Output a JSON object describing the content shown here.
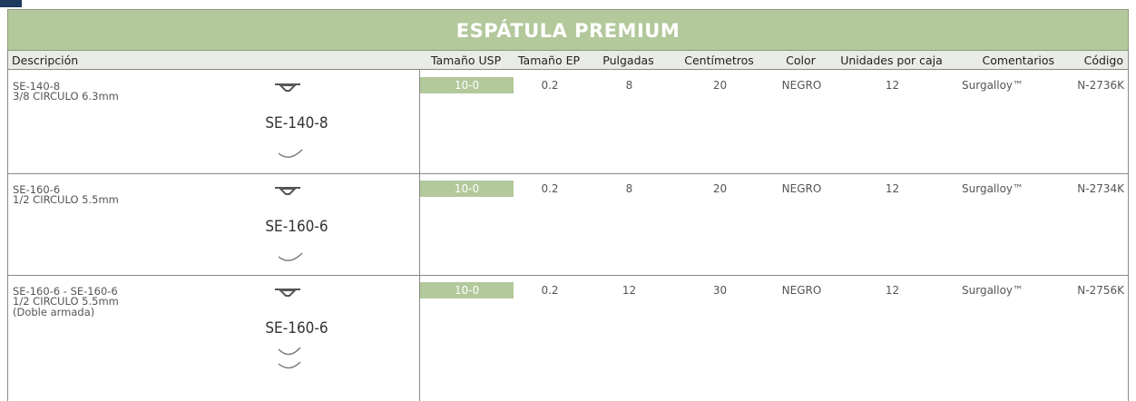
{
  "title": "ESPÁTULA PREMIUM",
  "columns": [
    "Descripción",
    "Tamaño USP",
    "Tamaño EP",
    "Pulgadas",
    "Centímetros",
    "Color",
    "Unidades por caja",
    "Comentarios",
    "Código"
  ],
  "rows": [
    {
      "description": [
        "SE-140-8",
        "3/8 CIRCULO 6.3mm"
      ],
      "image_label": "SE-140-8",
      "cells": [
        "10-0",
        "0.2",
        "8",
        "20",
        "NEGRO",
        "12",
        "Surgalloy™",
        "N-2736K"
      ]
    },
    {
      "description": [
        "SE-160-6",
        "1/2 CIRCULO 5.5mm"
      ],
      "image_label": "SE-160-6",
      "cells": [
        "10-0",
        "0.2",
        "8",
        "20",
        "NEGRO",
        "12",
        "Surgalloy™",
        "N-2734K"
      ]
    },
    {
      "description": [
        "SE-160-6 - SE-160-6",
        "1/2 CIRCULO 5.5mm",
        "(Doble armada)"
      ],
      "image_label": "SE-160-6",
      "cells": [
        "10-0",
        "0.2",
        "12",
        "30",
        "NEGRO",
        "12",
        "Surgalloy™",
        "N-2756K"
      ]
    }
  ]
}
